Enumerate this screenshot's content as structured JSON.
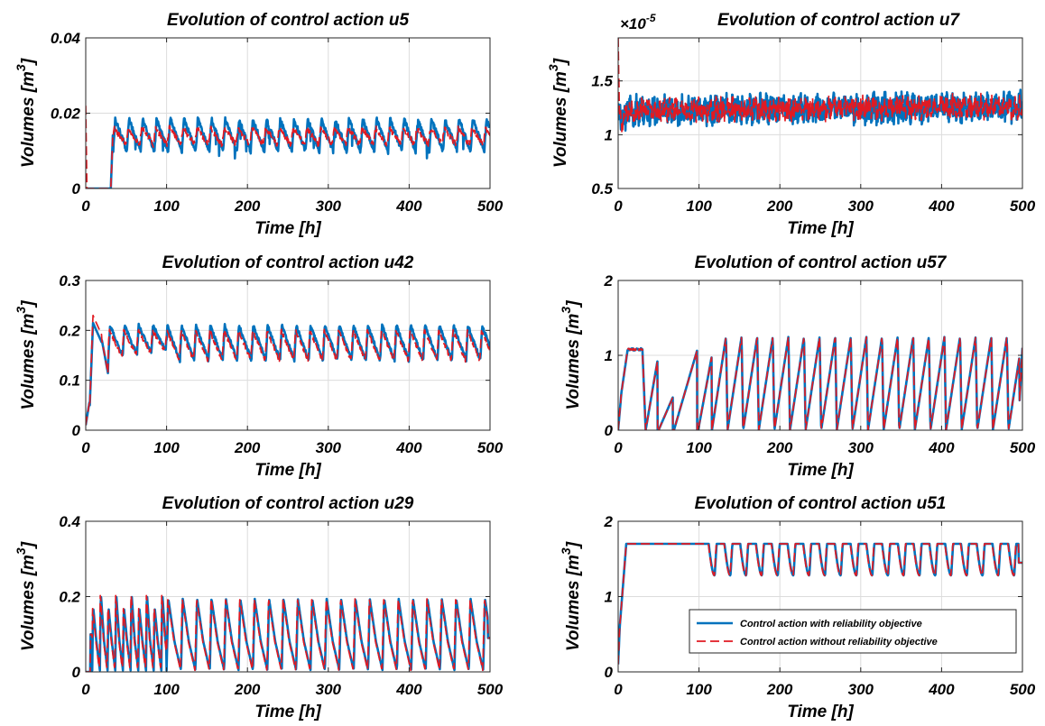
{
  "chart_data": [
    {
      "type": "line",
      "title": "Evolution of control action u5",
      "xlabel": "Time [h]",
      "ylabel": "Volumes [m",
      "ylabel_sup": "3",
      "ylabel_close": "]",
      "exponent": "",
      "xlim": [
        0,
        500
      ],
      "ylim": [
        0,
        0.04
      ],
      "xticks": [
        "0",
        "100",
        "200",
        "300",
        "400",
        "500"
      ],
      "yticks": [
        {
          "v": 0,
          "label": "0"
        },
        {
          "v": 0.02,
          "label": "0.02"
        },
        {
          "v": 0.04,
          "label": "0.04"
        }
      ],
      "grid": true,
      "shape": {
        "kind": "noisy",
        "start_zero_until": 31,
        "base": 0.0135,
        "amp": 0.0045,
        "period": 17,
        "noise": 0.0015,
        "spike_red": 0.022
      },
      "series": [
        {
          "key": "with",
          "color": "#0072bd",
          "dash": "",
          "x": [
            0,
            30,
            34,
            50,
            100,
            200,
            300,
            400,
            500
          ],
          "y": [
            0,
            0,
            0.017,
            0.015,
            0.014,
            0.014,
            0.014,
            0.013,
            0.012
          ]
        },
        {
          "key": "without",
          "color": "#e11a22",
          "dash": "10,5",
          "x": [
            0,
            1,
            2,
            30,
            34,
            50,
            100,
            200,
            300,
            400,
            500
          ],
          "y": [
            0.022,
            0.018,
            0,
            0,
            0.016,
            0.014,
            0.013,
            0.013,
            0.013,
            0.012,
            0.012
          ]
        }
      ]
    },
    {
      "type": "line",
      "title": "Evolution of control action u7",
      "xlabel": "Time [h]",
      "ylabel": "Volumes [m",
      "ylabel_sup": "3",
      "ylabel_close": "]",
      "exponent_base": "×10",
      "exponent_power": "-5",
      "xlim": [
        0,
        500
      ],
      "ylim": [
        0.5,
        1.9
      ],
      "xticks": [
        "0",
        "100",
        "200",
        "300",
        "400",
        "500"
      ],
      "yticks": [
        {
          "v": 0.5,
          "label": "0.5"
        },
        {
          "v": 1,
          "label": "1"
        },
        {
          "v": 1.5,
          "label": "1.5"
        }
      ],
      "grid": true,
      "shape": {
        "kind": "noise",
        "base": 1.22,
        "amp": 0.09,
        "noise": 0.09
      },
      "series": [
        {
          "key": "with",
          "color": "#0072bd",
          "dash": "",
          "x": [
            0,
            5,
            100,
            200,
            300,
            400,
            500
          ],
          "y": [
            1.1,
            1.2,
            1.22,
            1.22,
            1.22,
            1.22,
            1.25
          ]
        },
        {
          "key": "without",
          "color": "#e11a22",
          "dash": "10,5",
          "x": [
            0,
            2,
            5,
            100,
            200,
            300,
            400,
            500
          ],
          "y": [
            1.9,
            1.0,
            1.2,
            1.22,
            1.22,
            1.22,
            1.22,
            1.25
          ]
        }
      ]
    },
    {
      "type": "line",
      "title": "Evolution of control action u42",
      "xlabel": "Time [h]",
      "ylabel": "Volumes [m",
      "ylabel_sup": "3",
      "ylabel_close": "]",
      "exponent": "",
      "xlim": [
        0,
        500
      ],
      "ylim": [
        0,
        0.3
      ],
      "xticks": [
        "0",
        "100",
        "200",
        "300",
        "400",
        "500"
      ],
      "yticks": [
        {
          "v": 0,
          "label": "0"
        },
        {
          "v": 0.1,
          "label": "0.1"
        },
        {
          "v": 0.2,
          "label": "0.2"
        },
        {
          "v": 0.3,
          "label": "0.3"
        }
      ],
      "grid": true,
      "shape": {
        "kind": "u42"
      },
      "series": [
        {
          "key": "with",
          "color": "#0072bd",
          "dash": "",
          "x": [
            0,
            5,
            10,
            20,
            30,
            100,
            500
          ],
          "y": [
            0.01,
            0.05,
            0.215,
            0.19,
            0.12,
            0.17,
            0.14
          ]
        },
        {
          "key": "without",
          "color": "#e11a22",
          "dash": "10,5",
          "x": [
            0,
            5,
            10,
            20,
            30,
            100,
            500
          ],
          "y": [
            0.0,
            0.05,
            0.235,
            0.2,
            0.13,
            0.175,
            0.17
          ]
        }
      ]
    },
    {
      "type": "line",
      "title": "Evolution of control action u57",
      "xlabel": "Time [h]",
      "ylabel": "Volumes [m",
      "ylabel_sup": "3",
      "ylabel_close": "]",
      "exponent": "",
      "xlim": [
        0,
        500
      ],
      "ylim": [
        0,
        2
      ],
      "xticks": [
        "0",
        "100",
        "200",
        "300",
        "400",
        "500"
      ],
      "yticks": [
        {
          "v": 0,
          "label": "0"
        },
        {
          "v": 1,
          "label": "1"
        },
        {
          "v": 2,
          "label": "2"
        }
      ],
      "grid": true,
      "shape": {
        "kind": "u57"
      },
      "series": [
        {
          "key": "with",
          "color": "#0072bd",
          "dash": "",
          "x": [
            0,
            5,
            12,
            28,
            100,
            500
          ],
          "y": [
            0,
            1.0,
            1.1,
            1.08,
            1.0,
            0.8
          ]
        },
        {
          "key": "without",
          "color": "#e11a22",
          "dash": "10,5",
          "x": [
            0,
            5,
            12,
            28,
            100,
            500
          ],
          "y": [
            0,
            1.0,
            1.1,
            1.08,
            1.0,
            0.8
          ]
        }
      ]
    },
    {
      "type": "line",
      "title": "Evolution of control action u29",
      "xlabel": "Time [h]",
      "ylabel": "Volumes [m",
      "ylabel_sup": "3",
      "ylabel_close": "]",
      "exponent": "",
      "xlim": [
        0,
        500
      ],
      "ylim": [
        0,
        0.4
      ],
      "xticks": [
        "0",
        "100",
        "200",
        "300",
        "400",
        "500"
      ],
      "yticks": [
        {
          "v": 0,
          "label": "0"
        },
        {
          "v": 0.2,
          "label": "0.2"
        },
        {
          "v": 0.4,
          "label": "0.4"
        }
      ],
      "grid": true,
      "shape": {
        "kind": "u29"
      },
      "series": [
        {
          "key": "with",
          "color": "#0072bd",
          "dash": "",
          "x": [
            0,
            6,
            8,
            15,
            100,
            500
          ],
          "y": [
            0,
            0,
            0.1,
            0.08,
            0.2,
            0.09
          ]
        },
        {
          "key": "without",
          "color": "#e11a22",
          "dash": "10,5",
          "x": [
            0,
            6,
            8,
            15,
            20,
            100,
            500
          ],
          "y": [
            0,
            0,
            0.1,
            0.08,
            0.21,
            0.2,
            0.09
          ]
        }
      ]
    },
    {
      "type": "line",
      "title": "Evolution of control action u51",
      "xlabel": "Time [h]",
      "ylabel": "Volumes [m",
      "ylabel_sup": "3",
      "ylabel_close": "]",
      "exponent": "",
      "xlim": [
        0,
        500
      ],
      "ylim": [
        0,
        2
      ],
      "xticks": [
        "0",
        "100",
        "200",
        "300",
        "400",
        "500"
      ],
      "yticks": [
        {
          "v": 0,
          "label": "0"
        },
        {
          "v": 1,
          "label": "1"
        },
        {
          "v": 2,
          "label": "2"
        }
      ],
      "grid": true,
      "shape": {
        "kind": "u51"
      },
      "legend": {
        "placement": "lower-right",
        "entries": [
          {
            "label": "Control action with reliability objective",
            "color": "#0072bd",
            "dash": ""
          },
          {
            "label": "Control action without reliability objective",
            "color": "#e11a22",
            "dash": "10,5"
          }
        ]
      },
      "series": [
        {
          "key": "with",
          "color": "#0072bd",
          "dash": "",
          "x": [
            0,
            2,
            10,
            110,
            120,
            500
          ],
          "y": [
            0.1,
            0.6,
            1.7,
            1.7,
            1.4,
            1.45
          ]
        },
        {
          "key": "without",
          "color": "#e11a22",
          "dash": "10,5",
          "x": [
            0,
            2,
            10,
            110,
            120,
            500
          ],
          "y": [
            0.1,
            0.6,
            1.7,
            1.7,
            1.4,
            1.45
          ]
        }
      ]
    }
  ]
}
